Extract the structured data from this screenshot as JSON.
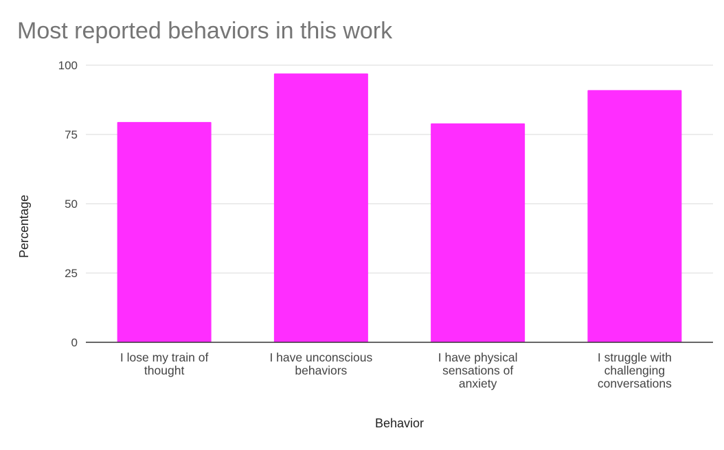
{
  "chart_data": {
    "type": "bar",
    "title": "Most reported behaviors in this work",
    "xlabel": "Behavior",
    "ylabel": "Percentage",
    "categories": [
      [
        "I lose my train of",
        "thought"
      ],
      [
        "I have unconscious",
        "behaviors"
      ],
      [
        "I have physical",
        "sensations of",
        "anxiety"
      ],
      [
        "I struggle with",
        "challenging",
        "conversations"
      ]
    ],
    "values": [
      79.5,
      97,
      79,
      91
    ],
    "ylim": [
      0,
      100
    ],
    "yticks": [
      "0",
      "25",
      "50",
      "75",
      "100"
    ],
    "grid": true,
    "legend": "none",
    "bar_color": "#ff2dff",
    "grid_color": "#d9d9d9",
    "axis_color": "#333333"
  }
}
